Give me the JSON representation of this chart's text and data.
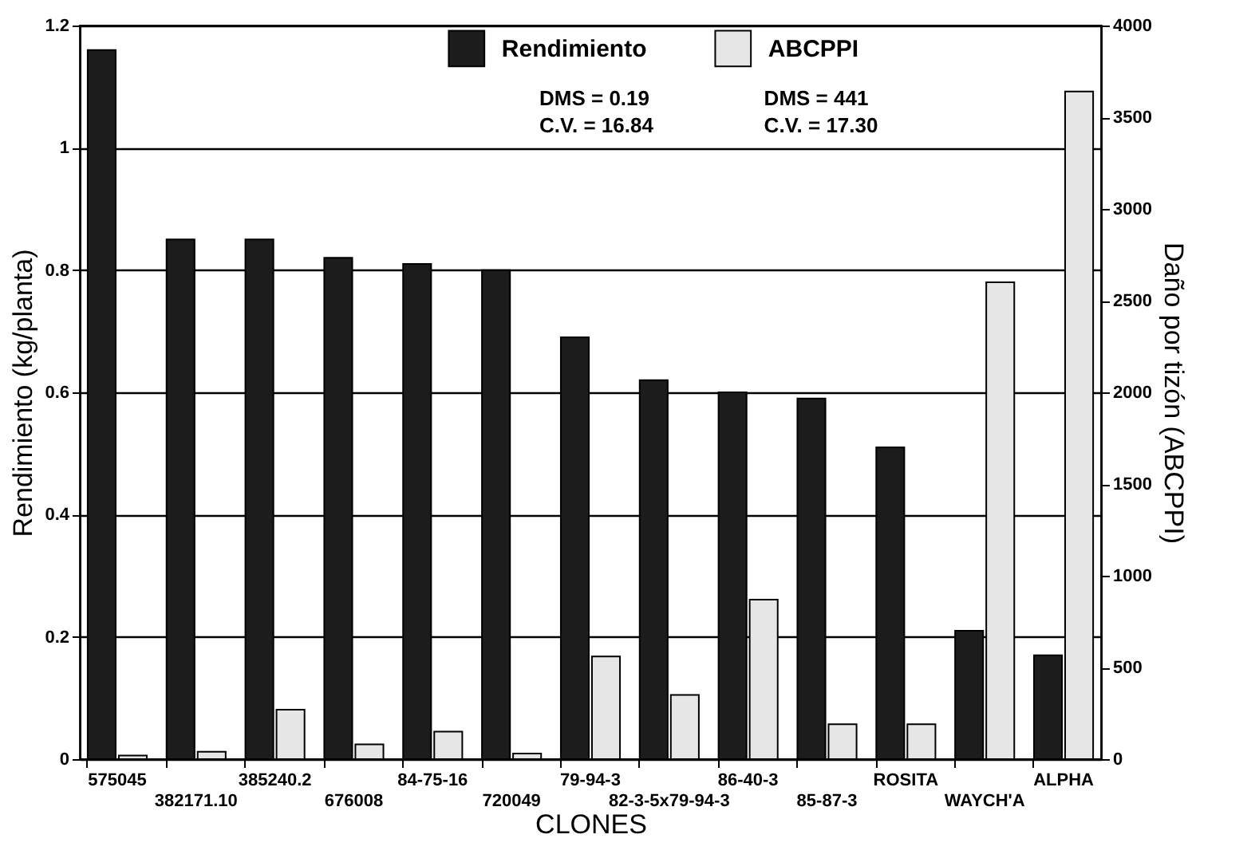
{
  "chart_data": {
    "type": "bar",
    "xlabel": "CLONES",
    "ylabel": "Rendimiento (kg/planta)",
    "y2label": "Daño por tizón (ABCPPI)",
    "categories": [
      "575045",
      "382171.10",
      "385240.2",
      "676008",
      "84-75-16",
      "720049",
      "79-94-3",
      "82-3-5x79-94-3",
      "86-40-3",
      "85-87-3",
      "ROSITA",
      "WAYCH'A",
      "ALPHA"
    ],
    "series": [
      {
        "name": "Rendimiento",
        "color": "#1c1c1c",
        "values": [
          1.16,
          0.85,
          0.85,
          0.82,
          0.81,
          0.8,
          0.69,
          0.62,
          0.6,
          0.59,
          0.51,
          0.21,
          0.17
        ]
      },
      {
        "name": "ABCPPI",
        "color": "#e6e6e6",
        "axis": "y2",
        "values": [
          20,
          40,
          270,
          80,
          150,
          30,
          560,
          350,
          870,
          190,
          190,
          2600,
          3640
        ]
      }
    ],
    "ylim": [
      0,
      1.2
    ],
    "yticks": [
      0,
      0.2,
      0.4,
      0.6,
      0.8,
      1,
      1.2
    ],
    "y2lim": [
      0,
      4000
    ],
    "y2ticks": [
      0,
      500,
      1000,
      1500,
      2000,
      2500,
      3000,
      3500,
      4000
    ],
    "grid": "y",
    "legend": "top",
    "annotations": [
      "DMS = 0.19",
      "C.V. = 16.84",
      "DMS = 441",
      "C.V. = 17.30"
    ]
  }
}
